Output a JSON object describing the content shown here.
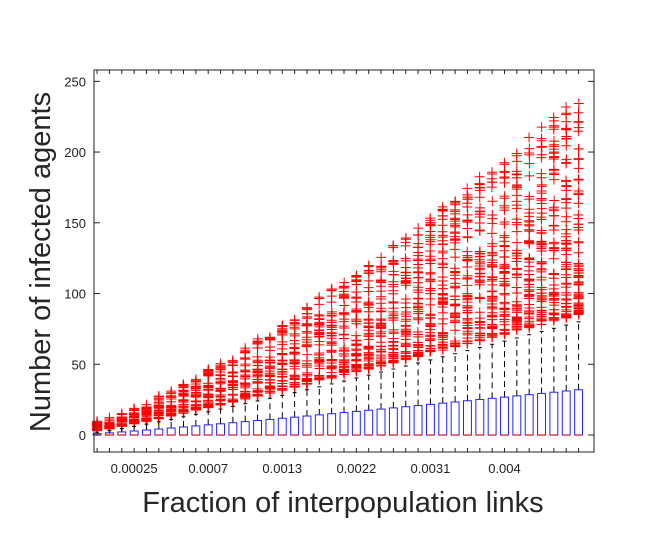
{
  "chart_data": {
    "type": "boxplot",
    "xlabel": "Fraction of interpopulation links",
    "ylabel": "Number of infected agents",
    "ylim": [
      -12,
      258
    ],
    "yticks": [
      0,
      50,
      100,
      150,
      200,
      250
    ],
    "x_tick_labels": [
      "0.00025",
      "0.0007",
      "0.0013",
      "0.0022",
      "0.0031",
      "0.004"
    ],
    "x_tick_positions": [
      3,
      9,
      15,
      21,
      27,
      33
    ],
    "n_boxes": 40,
    "box_stats": {
      "median": 0,
      "q3_first": 1,
      "q3_last": 32,
      "whisker_first": 2,
      "whisker_last": 80,
      "outlier_min_first": 3,
      "outlier_min_last": 85,
      "outlier_max_first": 10,
      "outlier_max_last": 240
    },
    "colors": {
      "box": "#2222ff",
      "median": "#e01010",
      "whisker": "#000000",
      "outlier": "#ff0000"
    },
    "grid": false
  }
}
